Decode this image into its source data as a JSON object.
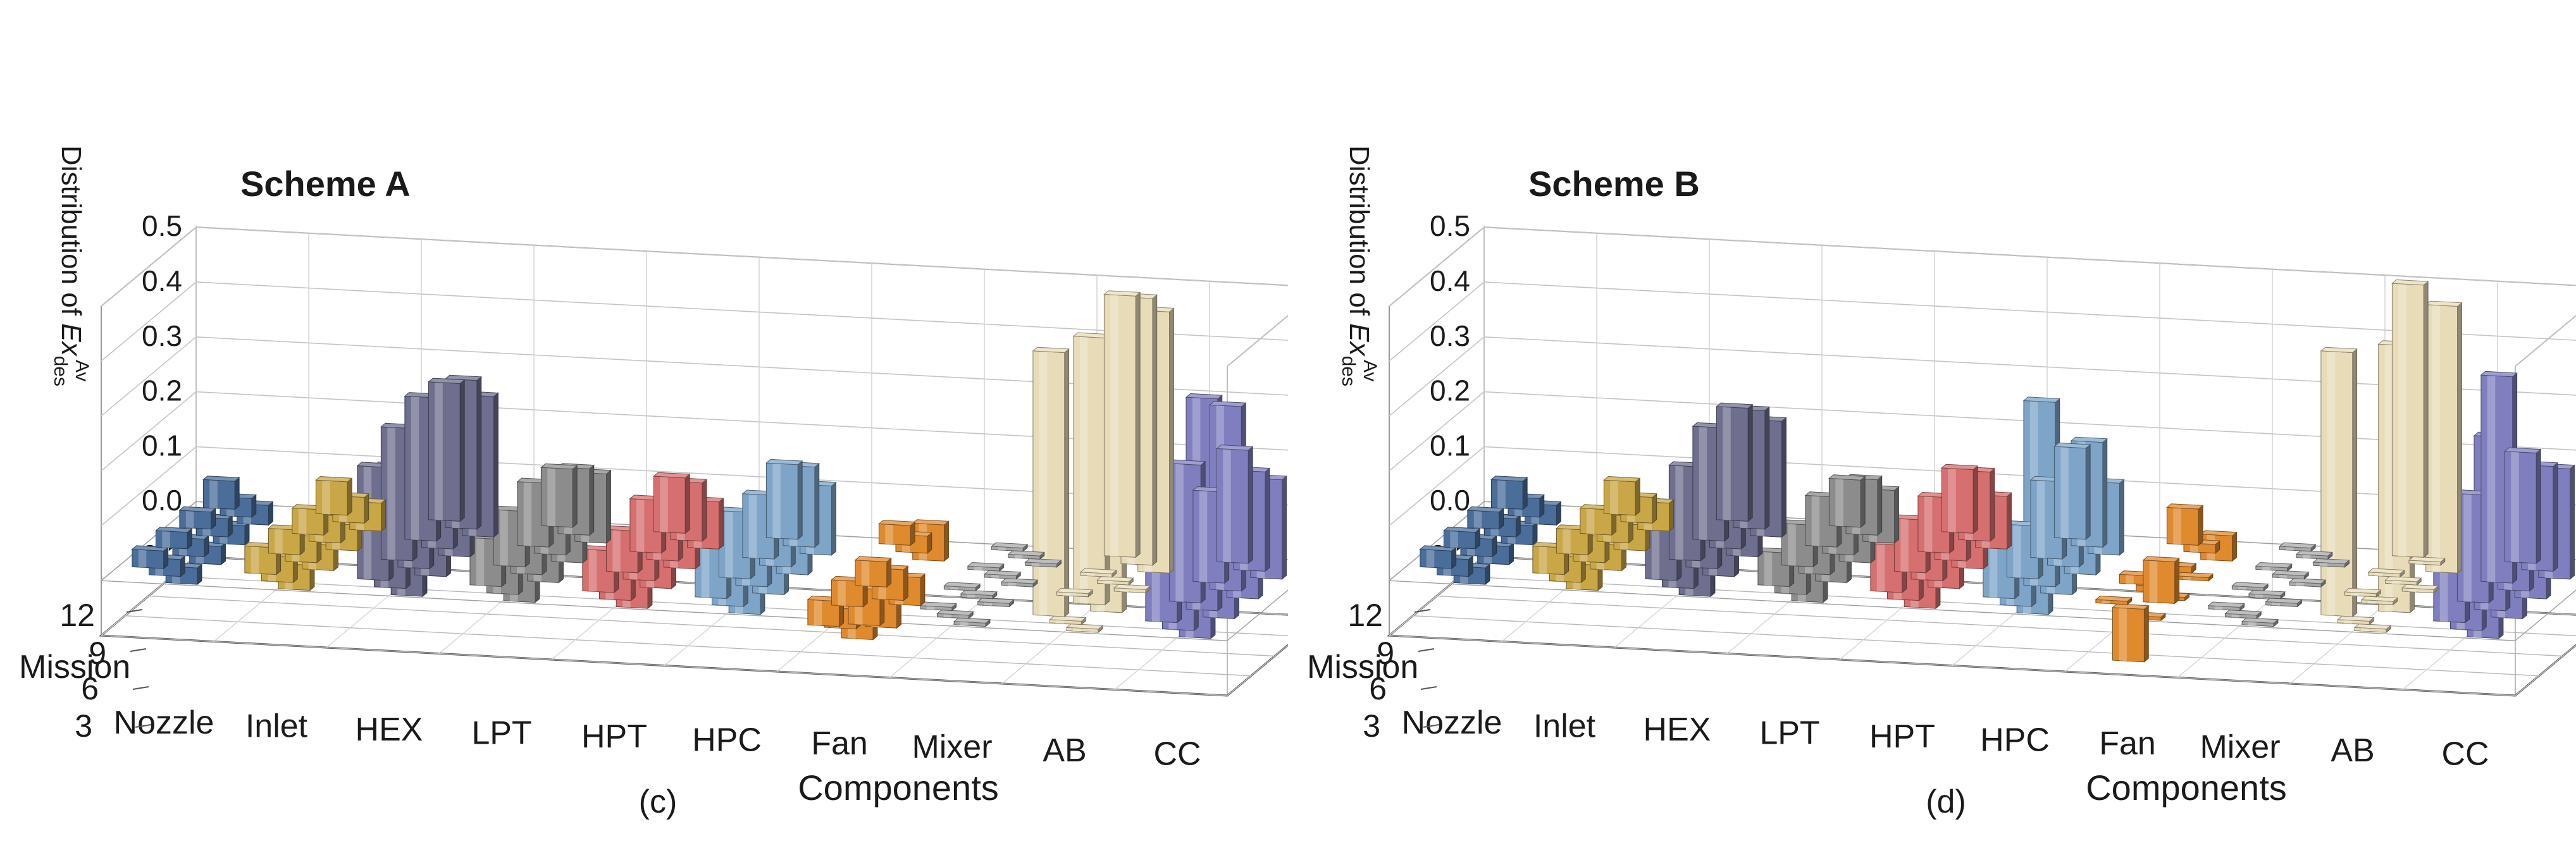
{
  "chart_data": [
    {
      "type": "bar",
      "panel_label": "(c)",
      "scheme_label": "Scheme A",
      "xlabel": "Components",
      "ylabel_main": "Distribution of ",
      "ylabel_var": "Ex",
      "ylabel_sub": "des",
      "ylabel_sup": "Av",
      "depth_label": "Mission",
      "categories": [
        "Nozzle",
        "Inlet",
        "HEX",
        "LPT",
        "HPT",
        "HPC",
        "Fan",
        "Mixer",
        "AB",
        "CC"
      ],
      "missions": [
        3,
        6,
        9,
        12
      ],
      "zlim": [
        -0.1,
        0.5
      ],
      "zticks": [
        "0.5",
        "0.4",
        "0.3",
        "0.2",
        "0.1",
        "0.0",
        "-0.1"
      ],
      "bar_values": {
        "Nozzle": [
          0.045,
          0.028,
          0.03,
          0.025,
          0.027,
          0.029,
          0.024,
          0.026,
          0.027,
          0.026,
          0.025,
          0.024
        ],
        "Inlet": [
          0.055,
          0.041,
          0.045,
          0.04,
          0.043,
          0.041,
          0.039,
          0.042,
          0.04,
          0.043,
          0.041,
          0.04
        ],
        "HEX": [
          0.245,
          0.265,
          0.25,
          0.255,
          0.24,
          0.245,
          0.235,
          0.22,
          0.23,
          0.2,
          0.215,
          0.05
        ],
        "LPT": [
          0.1,
          0.115,
          0.12,
          0.11,
          0.11,
          0.1,
          0.095,
          0.09,
          0.085,
          0.08,
          0.075,
          0.07
        ],
        "HPT": [
          0.095,
          0.1,
          0.08,
          0.09,
          0.085,
          0.095,
          0.07,
          0.075,
          0.075,
          0.07,
          0.06,
          0.055
        ],
        "HPC": [
          0.13,
          0.14,
          0.12,
          0.11,
          0.12,
          0.125,
          0.115,
          0.1,
          0.105,
          0.11,
          0.08,
          0.085
        ],
        "Fan": [
          0.03,
          0.025,
          0.06,
          -0.04,
          -0.05,
          -0.045,
          -0.04,
          -0.06,
          -0.05,
          -0.04,
          -0.03,
          -0.035
        ],
        "Mixer": [
          0.0,
          0.0,
          0.0,
          0.0,
          0.0,
          0.0,
          0.0,
          0.0,
          0.0,
          0.0,
          0.0,
          0.0
        ],
        "AB": [
          0.47,
          0.48,
          0.47,
          0.0,
          0.0,
          0.0,
          0.0,
          0.48,
          0.47,
          0.475,
          0.0,
          0.0
        ],
        "CC": [
          0.2,
          0.175,
          0.175,
          0.16,
          0.33,
          0.2,
          0.245,
          0.38,
          0.19,
          0.17,
          0.16,
          0.135
        ]
      }
    },
    {
      "type": "bar",
      "panel_label": "(d)",
      "scheme_label": "Scheme B",
      "xlabel": "Components",
      "ylabel_main": "Distribution of ",
      "ylabel_var": "Ex",
      "ylabel_sub": "des",
      "ylabel_sup": "Av",
      "depth_label": "Mission",
      "categories": [
        "Nozzle",
        "Inlet",
        "HEX",
        "LPT",
        "HPT",
        "HPC",
        "Fan",
        "Mixer",
        "AB",
        "CC"
      ],
      "missions": [
        3,
        6,
        9,
        12
      ],
      "zlim": [
        -0.1,
        0.5
      ],
      "zticks": [
        "0.5",
        "0.4",
        "0.3",
        "0.2",
        "0.1",
        "0.0",
        "-0.1"
      ],
      "bar_values": {
        "Nozzle": [
          0.045,
          0.028,
          0.03,
          0.025,
          0.027,
          0.029,
          0.024,
          0.026,
          0.027,
          0.026,
          0.025,
          0.024
        ],
        "Inlet": [
          0.055,
          0.041,
          0.045,
          0.04,
          0.043,
          0.041,
          0.039,
          0.042,
          0.04,
          0.043,
          0.041,
          0.04
        ],
        "HEX": [
          0.2,
          0.21,
          0.205,
          0.2,
          0.19,
          0.175,
          0.165,
          0.14,
          0.135,
          0.12,
          0.11,
          0.1
        ],
        "LPT": [
          0.08,
          0.095,
          0.09,
          0.085,
          0.09,
          0.075,
          0.07,
          0.065,
          0.06,
          0.055,
          0.05,
          0.045
        ],
        "HPT": [
          0.11,
          0.12,
          0.09,
          0.095,
          0.08,
          0.085,
          0.09,
          0.08,
          0.085,
          0.08,
          0.07,
          0.06
        ],
        "HPC": [
          0.16,
          0.185,
          0.125,
          0.135,
          0.135,
          0.15,
          0.09,
          0.33,
          0.055,
          0.09,
          0.08,
          0.07
        ],
        "Fan": [
          0.06,
          0.01,
          0.04,
          -0.07,
          0.005,
          0.0,
          0.01,
          0.005,
          0.0,
          0.0,
          -0.09,
          0.0
        ],
        "Mixer": [
          0.0,
          0.0,
          0.0,
          0.0,
          0.0,
          0.0,
          0.0,
          0.0,
          0.0,
          0.0,
          0.0,
          0.0
        ],
        "AB": [
          0.49,
          0.0,
          0.48,
          0.0,
          0.0,
          0.0,
          0.0,
          0.0,
          0.48,
          0.475,
          0.0,
          0.0
        ],
        "CC": [
          0.195,
          0.185,
          0.195,
          0.37,
          0.17,
          0.2,
          0.19,
          0.31,
          0.175,
          0.17,
          0.16,
          0.135
        ]
      }
    }
  ],
  "colors": {
    "Nozzle": "#4a6d9a",
    "Inlet": "#c9a646",
    "HEX": "#6e6e8e",
    "LPT": "#8c8c8c",
    "HPT": "#d66f6f",
    "HPC": "#7ea4c8",
    "Fan": "#e08a2e",
    "Mixer": "#a8a8a8",
    "AB": "#e8dcb8",
    "CC": "#7f7fbf"
  }
}
